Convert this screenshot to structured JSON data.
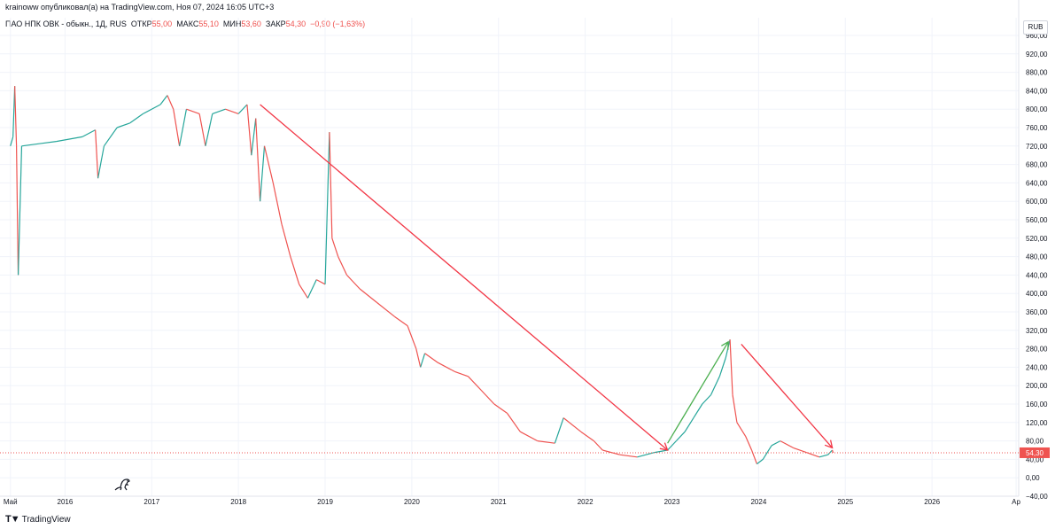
{
  "header": {
    "published_line": "krainoww опубликовал(а) на TradingView.com, Ноя 07, 2024 16:05 UTC+3"
  },
  "legend": {
    "symbol": "ПАО НПК ОВК - обыкн., 1Д, RUS",
    "open_label": "ОТКР",
    "open_value": "55,00",
    "high_label": "МАКС",
    "high_value": "55,10",
    "low_label": "МИН",
    "low_value": "53,60",
    "close_label": "ЗАКР",
    "close_value": "54,30",
    "change": "−0,90 (−1,63%)"
  },
  "currency": "RUB",
  "footer": {
    "brand": "TradingView"
  },
  "icons": [
    "dino-icon",
    "tradingview-logo-icon"
  ],
  "colors": {
    "up": "#26a69a",
    "down": "#ef5350",
    "arrow_red": "#f23645",
    "arrow_green": "#4caf50",
    "price_line": "#ef5350"
  },
  "chart_data": {
    "type": "line",
    "ylim": [
      -40,
      960
    ],
    "y_ticks": [
      -40,
      0,
      40,
      80,
      120,
      160,
      200,
      240,
      280,
      320,
      360,
      400,
      440,
      480,
      520,
      560,
      600,
      640,
      680,
      720,
      760,
      800,
      840,
      880,
      920,
      960
    ],
    "y_tick_labels": [
      "−40,00",
      "0,00",
      "40,00",
      "80,00",
      "120,00",
      "160,00",
      "200,00",
      "240,00",
      "280,00",
      "320,00",
      "360,00",
      "400,00",
      "440,00",
      "480,00",
      "520,00",
      "560,00",
      "600,00",
      "640,00",
      "680,00",
      "720,00",
      "760,00",
      "800,00",
      "840,00",
      "880,00",
      "920,00",
      "960,00"
    ],
    "xlim": [
      2015.25,
      2027.0
    ],
    "x_ticks": [
      2015.37,
      2016,
      2017,
      2018,
      2019,
      2020,
      2021,
      2022,
      2023,
      2024,
      2025,
      2026,
      2026.97
    ],
    "x_tick_labels": [
      "Май",
      "2016",
      "2017",
      "2018",
      "2019",
      "2020",
      "2021",
      "2022",
      "2023",
      "2024",
      "2025",
      "2026",
      "Ap"
    ],
    "last_price": 54.3,
    "last_price_label": "54,30",
    "series": [
      {
        "points": [
          [
            2015.37,
            720
          ],
          [
            2015.4,
            740
          ],
          [
            2015.42,
            850
          ],
          [
            2015.44,
            720
          ],
          [
            2015.46,
            440
          ],
          [
            2015.5,
            720
          ],
          [
            2015.7,
            725
          ],
          [
            2015.9,
            730
          ],
          [
            2016.2,
            740
          ],
          [
            2016.35,
            755
          ],
          [
            2016.38,
            650
          ],
          [
            2016.45,
            720
          ],
          [
            2016.6,
            760
          ],
          [
            2016.75,
            770
          ],
          [
            2016.9,
            790
          ],
          [
            2017.1,
            810
          ],
          [
            2017.18,
            830
          ],
          [
            2017.25,
            800
          ],
          [
            2017.32,
            720
          ],
          [
            2017.4,
            800
          ],
          [
            2017.55,
            790
          ],
          [
            2017.62,
            720
          ],
          [
            2017.7,
            790
          ],
          [
            2017.85,
            800
          ],
          [
            2018.0,
            790
          ],
          [
            2018.1,
            810
          ],
          [
            2018.15,
            700
          ],
          [
            2018.2,
            780
          ],
          [
            2018.25,
            600
          ],
          [
            2018.3,
            720
          ],
          [
            2018.4,
            640
          ],
          [
            2018.5,
            550
          ],
          [
            2018.6,
            480
          ],
          [
            2018.7,
            420
          ],
          [
            2018.8,
            390
          ],
          [
            2018.9,
            430
          ],
          [
            2019.0,
            420
          ],
          [
            2019.05,
            750
          ],
          [
            2019.08,
            520
          ],
          [
            2019.15,
            480
          ],
          [
            2019.25,
            440
          ],
          [
            2019.4,
            410
          ],
          [
            2019.6,
            380
          ],
          [
            2019.8,
            350
          ],
          [
            2019.95,
            330
          ],
          [
            2020.05,
            280
          ],
          [
            2020.1,
            240
          ],
          [
            2020.15,
            270
          ],
          [
            2020.3,
            250
          ],
          [
            2020.5,
            230
          ],
          [
            2020.65,
            220
          ],
          [
            2020.8,
            190
          ],
          [
            2020.95,
            160
          ],
          [
            2021.1,
            140
          ],
          [
            2021.25,
            100
          ],
          [
            2021.45,
            80
          ],
          [
            2021.65,
            75
          ],
          [
            2021.75,
            130
          ],
          [
            2021.95,
            100
          ],
          [
            2022.1,
            80
          ],
          [
            2022.2,
            60
          ],
          [
            2022.4,
            50
          ],
          [
            2022.6,
            45
          ],
          [
            2022.8,
            55
          ],
          [
            2022.95,
            60
          ],
          [
            2023.05,
            80
          ],
          [
            2023.15,
            100
          ],
          [
            2023.25,
            130
          ],
          [
            2023.35,
            160
          ],
          [
            2023.45,
            180
          ],
          [
            2023.55,
            220
          ],
          [
            2023.62,
            260
          ],
          [
            2023.67,
            300
          ],
          [
            2023.7,
            180
          ],
          [
            2023.75,
            120
          ],
          [
            2023.85,
            90
          ],
          [
            2023.92,
            60
          ],
          [
            2023.98,
            30
          ],
          [
            2024.05,
            40
          ],
          [
            2024.15,
            70
          ],
          [
            2024.25,
            80
          ],
          [
            2024.4,
            65
          ],
          [
            2024.55,
            55
          ],
          [
            2024.7,
            45
          ],
          [
            2024.8,
            50
          ],
          [
            2024.85,
            60
          ],
          [
            2024.86,
            54.3
          ]
        ]
      }
    ],
    "annotations": [
      {
        "type": "arrow",
        "color": "red",
        "from": [
          2018.25,
          810
        ],
        "to": [
          2022.95,
          60
        ]
      },
      {
        "type": "arrow",
        "color": "green",
        "from": [
          2022.95,
          75
        ],
        "to": [
          2023.65,
          295
        ]
      },
      {
        "type": "arrow",
        "color": "red",
        "from": [
          2023.8,
          290
        ],
        "to": [
          2024.85,
          65
        ]
      }
    ]
  }
}
